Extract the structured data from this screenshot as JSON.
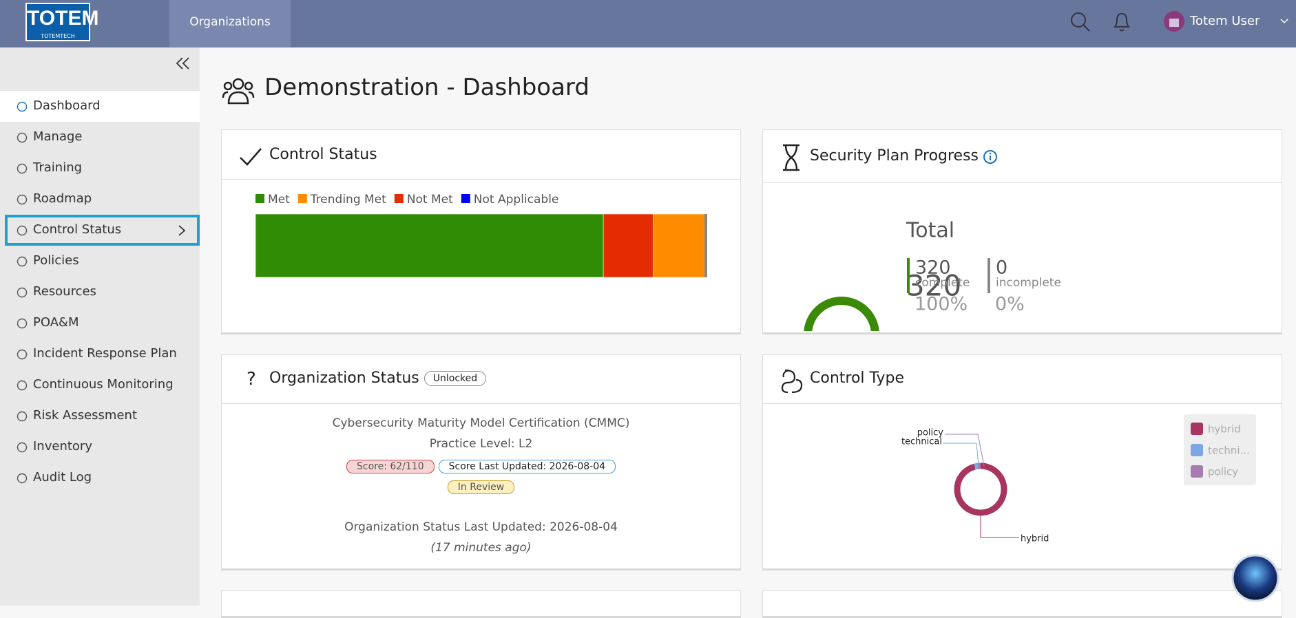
{
  "header": {
    "logo": "TOTEM",
    "logo_sub": "TOTEMTECH",
    "nav": "Organizations",
    "user": "Totem User"
  },
  "sidebar": {
    "items": [
      "Dashboard",
      "Manage",
      "Training",
      "Roadmap",
      "Control Status",
      "Policies",
      "Resources",
      "POA&M",
      "Incident Response Plan",
      "Continuous Monitoring",
      "Risk Assessment",
      "Inventory",
      "Audit Log"
    ],
    "active": 0,
    "focused": 4
  },
  "page": {
    "title": "Demonstration - Dashboard"
  },
  "org_status": {
    "title": "Organization Status",
    "lock": "Unlocked",
    "framework": "Cybersecurity Maturity Model Certification (CMMC)",
    "level": "Practice Level: L2",
    "score": "Score: 62/110",
    "score_updated": "Score Last Updated: 2026-08-04",
    "review": "In Review",
    "status_updated": "Organization Status Last Updated: 2026-08-04",
    "ago": "(17 minutes ago)"
  },
  "chart_data": [
    {
      "type": "bar",
      "title": "Control Status",
      "orientation": "horizontal",
      "stacked": true,
      "xlim": [
        0,
        100
      ],
      "series": [
        {
          "name": "Met",
          "color": "#318c05",
          "values": [
            77
          ]
        },
        {
          "name": "Trending Met",
          "color": "#ff8c00",
          "values": [
            12
          ]
        },
        {
          "name": "Not Met",
          "color": "#e42c00",
          "values": [
            11
          ]
        },
        {
          "name": "Not Applicable",
          "color": "#0000ff",
          "values": [
            0
          ]
        }
      ]
    },
    {
      "type": "donut",
      "title": "Security Plan Progress",
      "total": 320,
      "total_label": "Total",
      "categories": [
        "complete",
        "incomplete"
      ],
      "values": [
        320,
        0
      ],
      "shares": [
        {
          "value": 100,
          "label": "100%"
        },
        {
          "value": 0,
          "label": "0%"
        }
      ],
      "colors": [
        "#3a8a06",
        "#8a8a8a"
      ]
    },
    {
      "type": "donut",
      "title": "Control Type",
      "categories": [
        "hybrid",
        "technical",
        "policy"
      ],
      "legend_labels": [
        "hybrid",
        "techni...",
        "policy"
      ],
      "values": [
        96,
        2,
        2
      ],
      "colors": [
        "#a83560",
        "#7ea6e0",
        "#a77cb0"
      ],
      "legend": "top-right"
    }
  ]
}
